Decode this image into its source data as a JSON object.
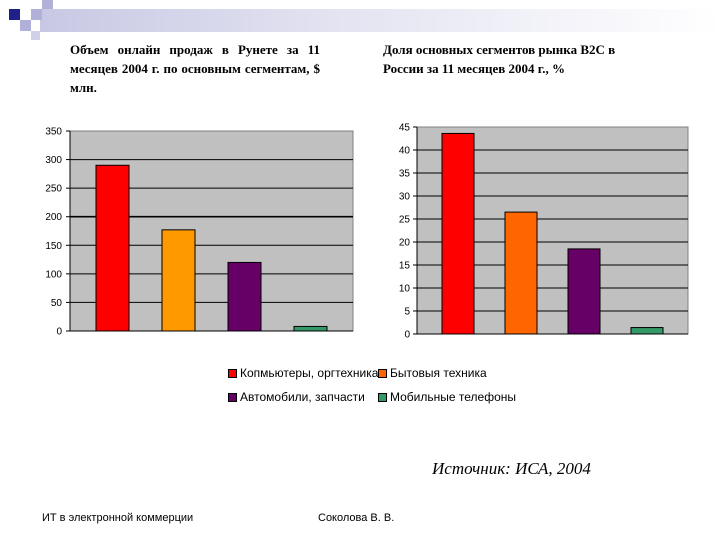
{
  "colors": {
    "computers": "#ff0000",
    "appliances": "#ff9900",
    "auto": "#660066",
    "phones": "#339966",
    "plot_bg": "#c0c0c0",
    "deco_dark": "#20208a",
    "deco_light": "#b0b0d8"
  },
  "legend": [
    {
      "label": "Копмьютеры, оргтехника",
      "color": "#ff0000"
    },
    {
      "label": "Бытовыя техника",
      "color": "#ff6600"
    },
    {
      "label": "Автомобили, запчасти",
      "color": "#660066"
    },
    {
      "label": "Мобильные телефоны",
      "color": "#339966"
    }
  ],
  "source": "Источник: ИСА, 2004",
  "footer": {
    "left": "ИТ в электронной коммерции",
    "right": "Соколова В. В."
  },
  "chart_data": [
    {
      "type": "bar",
      "title": "Объем онлайн продаж в Рунете за 11 месяцев 2004 г. по основным сегментам, $ млн.",
      "categories": [
        "Копмьютеры, оргтехника",
        "Бытовыя техника",
        "Автомобили, запчасти",
        "Мобильные телефоны"
      ],
      "values": [
        290,
        177,
        120,
        8
      ],
      "colors": [
        "#ff0000",
        "#ff9900",
        "#660066",
        "#339966"
      ],
      "ylim": [
        0,
        350
      ],
      "yticks": [
        0,
        50,
        100,
        150,
        200,
        250,
        300,
        350
      ],
      "gridline": 200,
      "grid": true
    },
    {
      "type": "bar",
      "title": "Доля основных сегментов рынка B2C в России за 11 месяцев 2004 г., %",
      "categories": [
        "Копмьютеры, оргтехника",
        "Бытовыя техника",
        "Автомобили, запчасти",
        "Мобильные телефоны"
      ],
      "values": [
        43.6,
        26.5,
        18.5,
        1.4
      ],
      "colors": [
        "#ff0000",
        "#ff6600",
        "#660066",
        "#339966"
      ],
      "ylim": [
        0,
        45
      ],
      "yticks": [
        0,
        5,
        10,
        15,
        20,
        25,
        30,
        35,
        40,
        45
      ],
      "grid": true
    }
  ]
}
